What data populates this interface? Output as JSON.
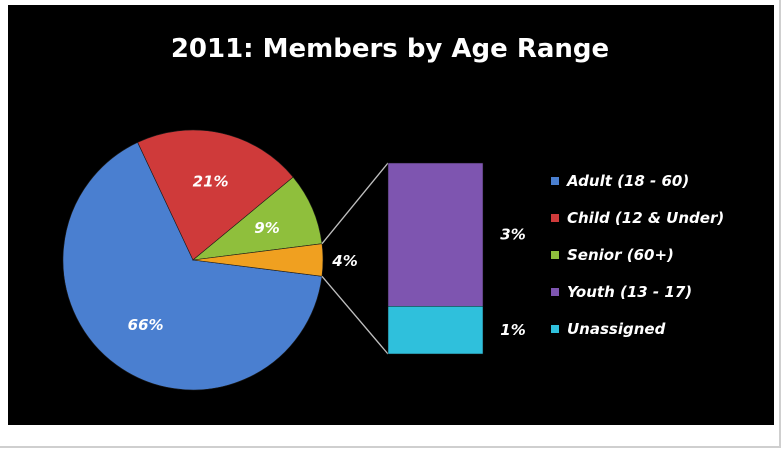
{
  "chart_data": {
    "type": "pie",
    "subtype": "pie-of-pie",
    "title": "2011: Members by Age Range",
    "series": [
      {
        "name": "Adult (18 - 60)",
        "value": 66,
        "label": "66%",
        "color": "#4a7fd0"
      },
      {
        "name": "Child (12 & Under)",
        "value": 21,
        "label": "21%",
        "color": "#cf3a3a"
      },
      {
        "name": "Senior (60+)",
        "value": 9,
        "label": "9%",
        "color": "#8fbf3c"
      },
      {
        "name": "Youth (13 - 17)",
        "value": 3,
        "label": "3%",
        "color": "#7e55b0"
      },
      {
        "name": "Unassigned",
        "value": 1,
        "label": "1%",
        "color": "#2fc0dc"
      }
    ],
    "other_slice": {
      "label": "4%",
      "value": 4,
      "color": "#f0a020",
      "members": [
        "Youth (13 - 17)",
        "Unassigned"
      ]
    },
    "legend_position": "right"
  }
}
